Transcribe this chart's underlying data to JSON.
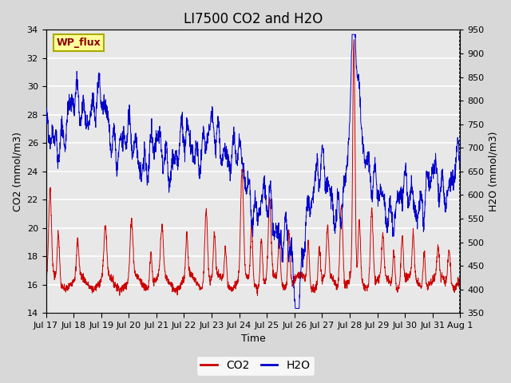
{
  "title": "LI7500 CO2 and H2O",
  "xlabel": "Time",
  "ylabel_left": "CO2 (mmol/m3)",
  "ylabel_right": "H2O (mmol/m3)",
  "ylim_left": [
    14,
    34
  ],
  "ylim_right": [
    350,
    950
  ],
  "yticks_left": [
    14,
    16,
    18,
    20,
    22,
    24,
    26,
    28,
    30,
    32,
    34
  ],
  "yticks_right": [
    350,
    400,
    450,
    500,
    550,
    600,
    650,
    700,
    750,
    800,
    850,
    900,
    950
  ],
  "xtick_labels": [
    "Jul 17",
    "Jul 18",
    "Jul 19",
    "Jul 20",
    "Jul 21",
    "Jul 22",
    "Jul 23",
    "Jul 24",
    "Jul 25",
    "Jul 26",
    "Jul 27",
    "Jul 28",
    "Jul 29",
    "Jul 30",
    "Jul 31",
    "Aug 1"
  ],
  "co2_color": "#cc0000",
  "h2o_color": "#0000cc",
  "fig_bg_color": "#d8d8d8",
  "plot_bg_color": "#e8e8e8",
  "annotation_text": "WP_flux",
  "annotation_bg": "#ffff99",
  "annotation_border": "#aaaa00",
  "legend_co2": "CO2",
  "legend_h2o": "H2O",
  "title_fontsize": 12,
  "axis_fontsize": 9,
  "tick_fontsize": 8,
  "n_days": 15,
  "pts_per_day": 144
}
